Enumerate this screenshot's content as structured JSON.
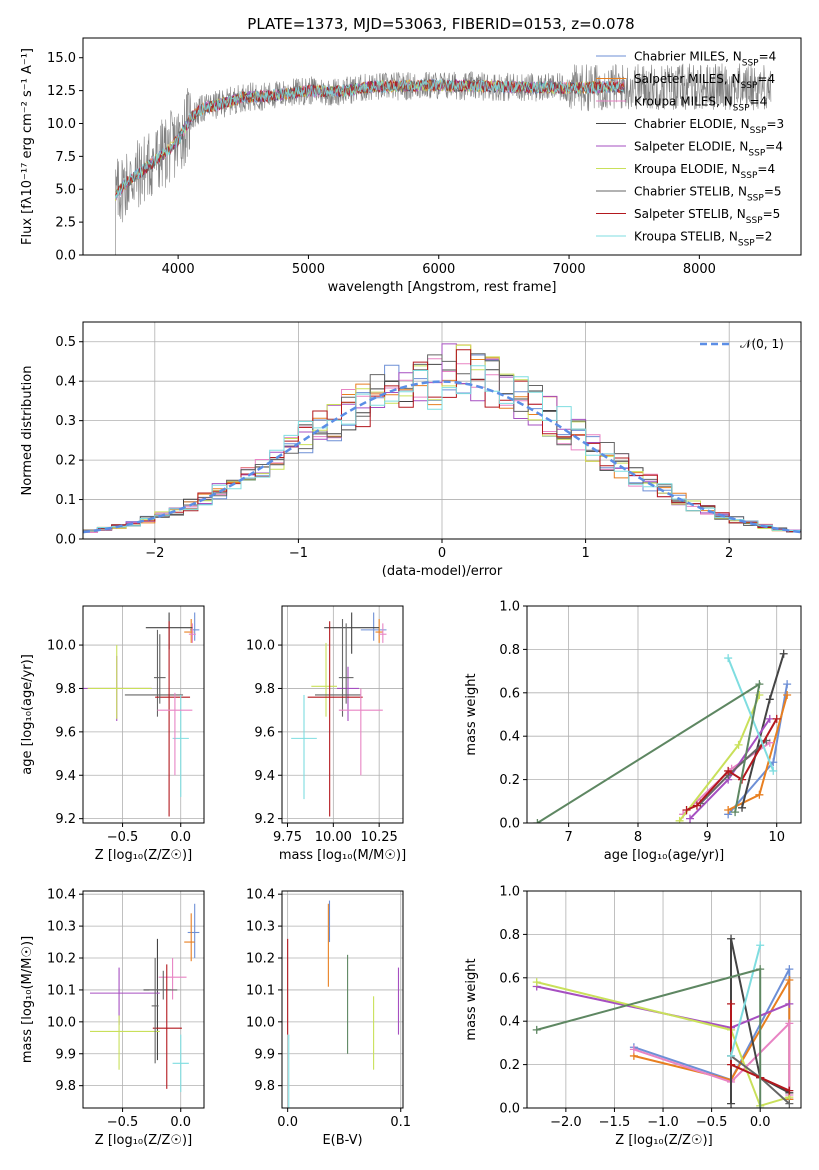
{
  "figure": {
    "title": "PLATE=1373, MJD=53063, FIBERID=0153, z=0.078"
  },
  "colors": {
    "models": [
      "#6d8fd6",
      "#e87f20",
      "#e884c4",
      "#444444",
      "#a64fc1",
      "#c9e05a",
      "#666666",
      "#b3181e",
      "#7fdde0"
    ],
    "spectrum": "#808080",
    "normal": "#5b8ee6",
    "grid": "#b0b0b0",
    "green": "#5e8762"
  },
  "chart_data": [
    {
      "id": "spectrum",
      "type": "line",
      "xlabel": "wavelength [Angstrom, rest frame]",
      "ylabel": "Flux [fλ10⁻¹⁷ erg cm⁻² s⁻¹ A⁻¹]",
      "xlim": [
        3270,
        8780
      ],
      "ylim": [
        0,
        16.5
      ],
      "xticks": [
        4000,
        5000,
        6000,
        7000,
        8000
      ],
      "yticks": [
        0.0,
        2.5,
        5.0,
        7.5,
        10.0,
        12.5,
        15.0
      ],
      "grid": false,
      "legend_position": "top-right",
      "legend": [
        "Chabrier MILES, N_SSP=4",
        "Salpeter MILES, N_SSP=4",
        "Kroupa MILES, N_SSP=4",
        "Chabrier ELODIE, N_SSP=3",
        "Salpeter ELODIE, N_SSP=4",
        "Kroupa ELODIE, N_SSP=4",
        "Chabrier STELIB, N_SSP=5",
        "Salpeter STELIB, N_SSP=5",
        "Kroupa STELIB, N_SSP=2"
      ],
      "continuum": [
        [
          3520,
          4.5
        ],
        [
          3600,
          5.5
        ],
        [
          3700,
          6.2
        ],
        [
          3800,
          7.0
        ],
        [
          3900,
          7.8
        ],
        [
          4000,
          8.7
        ],
        [
          4100,
          10.5
        ],
        [
          4200,
          11.2
        ],
        [
          4300,
          11.4
        ],
        [
          4500,
          12.0
        ],
        [
          4700,
          12.1
        ],
        [
          5000,
          12.5
        ],
        [
          5200,
          12.4
        ],
        [
          5500,
          12.8
        ],
        [
          6000,
          12.9
        ],
        [
          6500,
          12.8
        ],
        [
          7000,
          12.7
        ],
        [
          7400,
          12.8
        ]
      ],
      "observed_range": [
        3500,
        8550
      ],
      "model_range": [
        3520,
        7420
      ]
    },
    {
      "id": "residuals",
      "type": "step",
      "xlabel": "(data-model)/error",
      "ylabel": "Normed distribution",
      "xlim": [
        -2.5,
        2.5
      ],
      "ylim": [
        0,
        0.55
      ],
      "xticks": [
        -2,
        -1,
        0,
        1,
        2
      ],
      "yticks": [
        0.0,
        0.1,
        0.2,
        0.3,
        0.4,
        0.5
      ],
      "grid": true,
      "legend_position": "top-right",
      "legend": [
        "𝒩(0, 1)"
      ],
      "bin_width": 0.1
    },
    {
      "id": "age-vs-Z",
      "type": "errorbar",
      "xlabel": "Z [log₁₀(Z/Z☉)]",
      "ylabel": "age  [log₁₀(age/yr)]",
      "xlim": [
        -0.84,
        0.2
      ],
      "ylim": [
        9.18,
        10.18
      ],
      "xticks": [
        -0.5,
        0.0
      ],
      "yticks": [
        9.2,
        9.4,
        9.6,
        9.8,
        10.0
      ],
      "grid": true,
      "points": [
        {
          "x": 0.12,
          "y": 10.07,
          "xerr": [
            0.04,
            0.04
          ],
          "yerr": [
            0.05,
            0.08
          ],
          "c": 0
        },
        {
          "x": 0.09,
          "y": 10.06,
          "xerr": [
            0.06,
            0.02
          ],
          "yerr": [
            0.05,
            0.06
          ],
          "c": 1
        },
        {
          "x": 0.1,
          "y": 10.05,
          "xerr": [
            0.03,
            0.03
          ],
          "yerr": [
            0.04,
            0.05
          ],
          "c": 2
        },
        {
          "x": -0.1,
          "y": 10.08,
          "xerr": [
            0.2,
            0.2
          ],
          "yerr": [
            0.1,
            0.07
          ],
          "c": 3
        },
        {
          "x": -0.55,
          "y": 9.8,
          "xerr": [
            0.3,
            0.3
          ],
          "yerr": [
            0.15,
            0.15
          ],
          "c": 4
        },
        {
          "x": -0.55,
          "y": 9.8,
          "xerr": [
            0.25,
            0.3
          ],
          "yerr": [
            0.14,
            0.2
          ],
          "c": 5
        },
        {
          "x": -0.2,
          "y": 9.77,
          "xerr": [
            0.28,
            0.22
          ],
          "yerr": [
            0.1,
            0.3
          ],
          "c": 6
        },
        {
          "x": -0.1,
          "y": 9.76,
          "xerr": [
            0.12,
            0.18
          ],
          "yerr": [
            0.55,
            0.35
          ],
          "c": 7
        },
        {
          "x": 0.0,
          "y": 9.57,
          "xerr": [
            0.07,
            0.07
          ],
          "yerr": [
            0.27,
            0.2
          ],
          "c": 8
        },
        {
          "x": -0.05,
          "y": 9.7,
          "xerr": [
            0.15,
            0.15
          ],
          "yerr": [
            0.3,
            0.08
          ],
          "c": 2
        },
        {
          "x": -0.18,
          "y": 9.85,
          "xerr": [
            0.05,
            0.05
          ],
          "yerr": [
            0.12,
            0.2
          ],
          "c": 6
        }
      ]
    },
    {
      "id": "age-vs-mass",
      "type": "errorbar",
      "xlabel": "mass [log₁₀(M/M☉)]",
      "ylabel": "",
      "xlim": [
        9.72,
        10.38
      ],
      "ylim": [
        9.18,
        10.18
      ],
      "xticks": [
        9.75,
        10.0,
        10.25
      ],
      "yticks": [
        9.2,
        9.4,
        9.6,
        9.8,
        10.0
      ],
      "grid": true,
      "points": [
        {
          "x": 10.22,
          "y": 10.07,
          "xerr": [
            0.07,
            0.07
          ],
          "yerr": [
            0.05,
            0.08
          ],
          "c": 0
        },
        {
          "x": 10.25,
          "y": 10.06,
          "xerr": [
            0.02,
            0.02
          ],
          "yerr": [
            0.05,
            0.06
          ],
          "c": 1
        },
        {
          "x": 10.27,
          "y": 10.05,
          "xerr": [
            0.02,
            0.02
          ],
          "yerr": [
            0.04,
            0.05
          ],
          "c": 2
        },
        {
          "x": 10.1,
          "y": 10.08,
          "xerr": [
            0.15,
            0.15
          ],
          "yerr": [
            0.12,
            0.07
          ],
          "c": 3
        },
        {
          "x": 10.08,
          "y": 9.8,
          "xerr": [
            0.06,
            0.06
          ],
          "yerr": [
            0.15,
            0.1
          ],
          "c": 4
        },
        {
          "x": 9.96,
          "y": 9.81,
          "xerr": [
            0.08,
            0.06
          ],
          "yerr": [
            0.14,
            0.2
          ],
          "c": 5
        },
        {
          "x": 10.05,
          "y": 9.77,
          "xerr": [
            0.15,
            0.1
          ],
          "yerr": [
            0.1,
            0.35
          ],
          "c": 6
        },
        {
          "x": 9.98,
          "y": 9.76,
          "xerr": [
            0.12,
            0.18
          ],
          "yerr": [
            0.55,
            0.35
          ],
          "c": 7
        },
        {
          "x": 9.84,
          "y": 9.57,
          "xerr": [
            0.07,
            0.07
          ],
          "yerr": [
            0.28,
            0.2
          ],
          "c": 8
        },
        {
          "x": 10.15,
          "y": 9.7,
          "xerr": [
            0.12,
            0.12
          ],
          "yerr": [
            0.3,
            0.1
          ],
          "c": 2
        },
        {
          "x": 10.07,
          "y": 9.85,
          "xerr": [
            0.04,
            0.04
          ],
          "yerr": [
            0.12,
            0.25
          ],
          "c": 6
        }
      ]
    },
    {
      "id": "weight-vs-age",
      "type": "line",
      "xlabel": "age  [log₁₀(age/yr)]",
      "ylabel": "mass weight",
      "xlim": [
        6.4,
        10.35
      ],
      "ylim": [
        0,
        1.0
      ],
      "xticks": [
        7,
        8,
        9,
        10
      ],
      "yticks": [
        0.0,
        0.2,
        0.4,
        0.6,
        0.8,
        1.0
      ],
      "grid": true,
      "series": [
        {
          "c": 0,
          "points": [
            [
              9.3,
              0.04
            ],
            [
              9.95,
              0.28
            ],
            [
              10.15,
              0.64
            ]
          ]
        },
        {
          "c": 1,
          "points": [
            [
              9.3,
              0.06
            ],
            [
              9.75,
              0.13
            ],
            [
              10.15,
              0.59
            ]
          ]
        },
        {
          "c": 2,
          "points": [
            [
              8.65,
              0.04
            ],
            [
              9.35,
              0.25
            ],
            [
              9.9,
              0.37
            ]
          ]
        },
        {
          "c": 3,
          "points": [
            [
              9.5,
              0.07
            ],
            [
              9.9,
              0.57
            ],
            [
              10.1,
              0.78
            ]
          ]
        },
        {
          "c": 4,
          "points": [
            [
              8.75,
              0.02
            ],
            [
              9.3,
              0.2
            ],
            [
              9.9,
              0.48
            ]
          ]
        },
        {
          "c": 5,
          "points": [
            [
              8.6,
              0.01
            ],
            [
              9.45,
              0.36
            ],
            [
              9.75,
              0.59
            ]
          ]
        },
        {
          "c": 6,
          "points": [
            [
              8.9,
              0.09
            ],
            [
              9.3,
              0.22
            ],
            [
              9.85,
              0.38
            ]
          ]
        },
        {
          "c": 7,
          "points": [
            [
              8.7,
              0.06
            ],
            [
              8.85,
              0.08
            ],
            [
              9.3,
              0.24
            ],
            [
              9.5,
              0.2
            ],
            [
              10.0,
              0.48
            ]
          ]
        },
        {
          "c": 8,
          "points": [
            [
              9.3,
              0.76
            ],
            [
              9.95,
              0.24
            ]
          ]
        },
        {
          "color": "green",
          "points": [
            [
              6.55,
              0.0
            ],
            [
              9.75,
              0.64
            ],
            [
              9.4,
              0.05
            ]
          ]
        }
      ]
    },
    {
      "id": "mass-vs-Z",
      "type": "errorbar",
      "xlabel": "Z [log₁₀(Z/Z☉)]",
      "ylabel": "mass [log₁₀(M/M☉)]",
      "xlim": [
        -0.84,
        0.2
      ],
      "ylim": [
        9.73,
        10.41
      ],
      "xticks": [
        -0.5,
        0.0
      ],
      "yticks": [
        9.8,
        9.9,
        10.0,
        10.1,
        10.2,
        10.3,
        10.4
      ],
      "grid": true,
      "points": [
        {
          "x": 0.12,
          "y": 10.28,
          "xerr": [
            0.06,
            0.04
          ],
          "yerr": [
            0.08,
            0.09
          ],
          "c": 0
        },
        {
          "x": 0.09,
          "y": 10.25,
          "xerr": [
            0.06,
            0.03
          ],
          "yerr": [
            0.06,
            0.09
          ],
          "c": 1
        },
        {
          "x": -0.07,
          "y": 10.14,
          "xerr": [
            0.12,
            0.12
          ],
          "yerr": [
            0.07,
            0.06
          ],
          "c": 2
        },
        {
          "x": -0.2,
          "y": 10.1,
          "xerr": [
            0.12,
            0.12
          ],
          "yerr": [
            0.22,
            0.16
          ],
          "c": 3
        },
        {
          "x": -0.53,
          "y": 10.09,
          "xerr": [
            0.25,
            0.35
          ],
          "yerr": [
            0.1,
            0.08
          ],
          "c": 4
        },
        {
          "x": -0.53,
          "y": 9.97,
          "xerr": [
            0.25,
            0.35
          ],
          "yerr": [
            0.12,
            0.05
          ],
          "c": 5
        },
        {
          "x": -0.15,
          "y": 10.1,
          "xerr": [
            0.12,
            0.12
          ],
          "yerr": [
            0.03,
            0.06
          ],
          "c": 6
        },
        {
          "x": -0.12,
          "y": 9.98,
          "xerr": [
            0.12,
            0.13
          ],
          "yerr": [
            0.19,
            0.2
          ],
          "c": 7
        },
        {
          "x": 0.0,
          "y": 9.87,
          "xerr": [
            0.07,
            0.07
          ],
          "yerr": [
            0.09,
            0.09
          ],
          "c": 8
        },
        {
          "x": -0.22,
          "y": 10.05,
          "xerr": [
            0.03,
            0.03
          ],
          "yerr": [
            0.18,
            0.15
          ],
          "c": 6
        }
      ]
    },
    {
      "id": "mass-vs-EBV",
      "type": "errorbar",
      "xlabel": "E(B-V)",
      "ylabel": "",
      "xlim": [
        -0.005,
        0.102
      ],
      "ylim": [
        9.73,
        10.41
      ],
      "xticks": [
        0.0,
        0.1
      ],
      "yticks": [
        9.8,
        9.9,
        10.0,
        10.1,
        10.2,
        10.3,
        10.4
      ],
      "grid": true,
      "points": [
        {
          "x": 0.0,
          "y": 10.1,
          "xerr": [
            0,
            0
          ],
          "yerr": [
            0.14,
            0.16
          ],
          "c": 7
        },
        {
          "x": 0.001,
          "y": 9.85,
          "xerr": [
            0,
            0
          ],
          "yerr": [
            0.12,
            0.11
          ],
          "c": 8
        },
        {
          "x": 0.036,
          "y": 10.25,
          "xerr": [
            0,
            0
          ],
          "yerr": [
            0.14,
            0.12
          ],
          "c": 1
        },
        {
          "x": 0.037,
          "y": 10.3,
          "xerr": [
            0,
            0
          ],
          "yerr": [
            0.05,
            0.08
          ],
          "c": 0
        },
        {
          "x": 0.053,
          "y": 10.05,
          "xerr": [
            0,
            0
          ],
          "yerr": [
            0.15,
            0.16
          ],
          "c": "green"
        },
        {
          "x": 0.076,
          "y": 9.96,
          "xerr": [
            0,
            0
          ],
          "yerr": [
            0.11,
            0.12
          ],
          "c": 5
        },
        {
          "x": 0.098,
          "y": 10.07,
          "xerr": [
            0,
            0
          ],
          "yerr": [
            0.11,
            0.1
          ],
          "c": 4
        }
      ]
    },
    {
      "id": "weight-vs-Z",
      "type": "line",
      "xlabel": "Z [log₁₀(Z/Z☉)]",
      "ylabel": "mass weight",
      "xlim": [
        -2.4,
        0.42
      ],
      "ylim": [
        0,
        1.0
      ],
      "xticks": [
        -2.0,
        -1.5,
        -1.0,
        -0.5,
        0.0
      ],
      "yticks": [
        0.0,
        0.2,
        0.4,
        0.6,
        0.8,
        1.0
      ],
      "grid": true,
      "series": [
        {
          "c": 0,
          "points": [
            [
              -1.3,
              0.28
            ],
            [
              -0.3,
              0.13
            ],
            [
              0.3,
              0.64
            ],
            [
              0.3,
              0.04
            ]
          ]
        },
        {
          "c": 1,
          "points": [
            [
              -1.3,
              0.24
            ],
            [
              -0.3,
              0.13
            ],
            [
              0.3,
              0.59
            ],
            [
              0.3,
              0.04
            ]
          ]
        },
        {
          "c": 2,
          "points": [
            [
              -1.3,
              0.27
            ],
            [
              -0.3,
              0.12
            ],
            [
              0.3,
              0.39
            ],
            [
              0.3,
              0.06
            ]
          ]
        },
        {
          "c": 3,
          "points": [
            [
              -0.3,
              0.02
            ],
            [
              -0.3,
              0.78
            ],
            [
              0.0,
              0.14
            ],
            [
              0.3,
              0.07
            ]
          ]
        },
        {
          "c": 4,
          "points": [
            [
              -2.3,
              0.56
            ],
            [
              -0.3,
              0.37
            ],
            [
              0.3,
              0.48
            ]
          ]
        },
        {
          "c": 5,
          "points": [
            [
              -2.3,
              0.58
            ],
            [
              -0.3,
              0.36
            ],
            [
              0.0,
              0.01
            ],
            [
              0.3,
              0.05
            ]
          ]
        },
        {
          "c": 6,
          "points": [
            [
              -0.3,
              0.24
            ],
            [
              0.0,
              0.14
            ],
            [
              0.3,
              0.02
            ]
          ]
        },
        {
          "c": 7,
          "points": [
            [
              -0.3,
              0.48
            ],
            [
              -0.3,
              0.2
            ],
            [
              0.0,
              0.14
            ],
            [
              0.3,
              0.08
            ]
          ]
        },
        {
          "c": 8,
          "points": [
            [
              0.0,
              0.75
            ],
            [
              -0.3,
              0.24
            ]
          ]
        },
        {
          "color": "green",
          "points": [
            [
              -2.3,
              0.36
            ],
            [
              0.0,
              0.64
            ],
            [
              0.0,
              0.0
            ]
          ]
        }
      ]
    }
  ]
}
